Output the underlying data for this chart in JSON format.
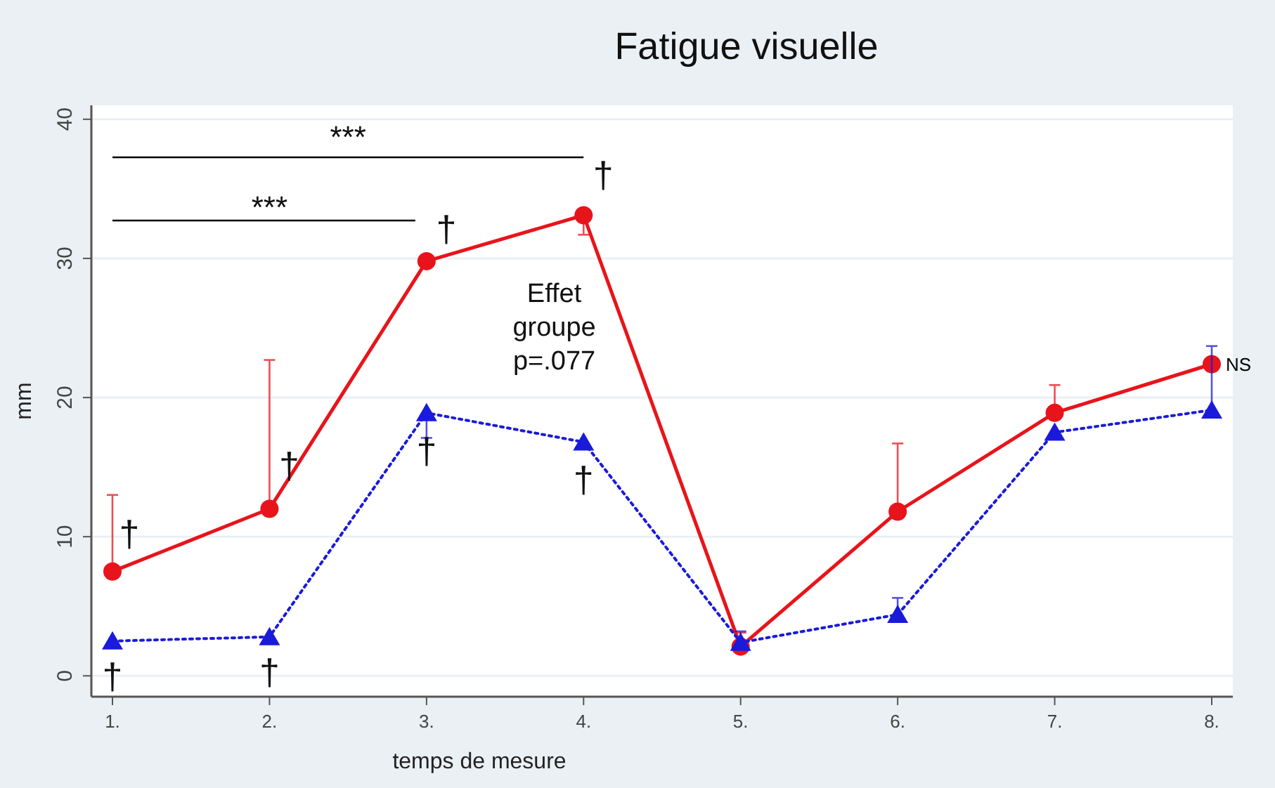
{
  "chart_data": {
    "type": "line",
    "title": "Fatigue visuelle",
    "xlabel": "temps de mesure",
    "ylabel": "mm",
    "categories": [
      "1.",
      "2.",
      "3.",
      "4.",
      "5.",
      "6.",
      "7.",
      "8."
    ],
    "ylim": [
      -1.5,
      41
    ],
    "yticks": [
      0,
      10,
      20,
      30,
      40
    ],
    "grid": "y",
    "series": [
      {
        "color": "#e8141b",
        "marker": "circle",
        "line_style": "solid",
        "values": [
          7.5,
          12,
          29.8,
          33.1,
          2.1,
          11.8,
          18.9,
          22.4
        ],
        "errors": [
          [
            7.5,
            13
          ],
          [
            12,
            22.7
          ],
          null,
          [
            31.7,
            33.1
          ],
          [
            2.1,
            3.1
          ],
          [
            11.8,
            16.7
          ],
          [
            18.9,
            20.9
          ],
          null
        ]
      },
      {
        "color": "#1a1adb",
        "marker": "triangle",
        "line_style": "dotted",
        "values": [
          2.5,
          2.8,
          18.9,
          16.8,
          2.4,
          4.4,
          17.5,
          19.1
        ],
        "errors": [
          null,
          null,
          [
            17.1,
            18.9
          ],
          null,
          [
            2.4,
            3.2
          ],
          [
            4.4,
            5.6
          ],
          null,
          [
            19.1,
            23.7
          ]
        ]
      }
    ],
    "annotations": [
      "***",
      "***",
      "Effet groupe p=.077",
      "†",
      "†",
      "†",
      "†",
      "†",
      "†",
      "†",
      "†",
      {
        "text": "NS",
        "x": "8.",
        "y": 22.4
      }
    ]
  }
}
